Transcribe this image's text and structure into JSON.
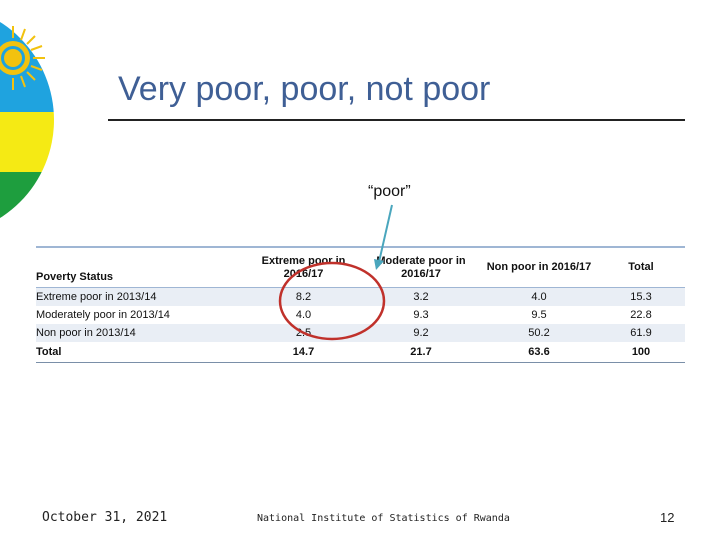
{
  "title": "Very poor, poor, not poor",
  "callout": "“poor”",
  "table": {
    "row_header": "Poverty Status",
    "columns": [
      "Extreme  poor in 2016/17",
      "Moderate poor in 2016/17",
      "Non poor in 2016/17",
      "Total"
    ],
    "rows": [
      {
        "label": "Extreme poor in 2013/14",
        "values": [
          "8.2",
          "3.2",
          "4.0",
          "15.3"
        ]
      },
      {
        "label": "Moderately poor in 2013/14",
        "values": [
          "4.0",
          "9.3",
          "9.5",
          "22.8"
        ]
      },
      {
        "label": "Non poor in 2013/14",
        "values": [
          "2.5",
          "9.2",
          "50.2",
          "61.9"
        ]
      },
      {
        "label": "Total",
        "values": [
          "14.7",
          "21.7",
          "63.6",
          "100"
        ]
      }
    ]
  },
  "footer": {
    "date": "October 31, 2021",
    "organization": "National Institute of Statistics of Rwanda",
    "page_number": "12"
  },
  "colors": {
    "flag_blue": "#1fa3df",
    "flag_yellow": "#f5ea14",
    "flag_green": "#1e9e3e",
    "sun": "#f2c20f",
    "title": "#3f5f95",
    "circle": "#c0312b",
    "arrow": "#4aa6bd"
  }
}
